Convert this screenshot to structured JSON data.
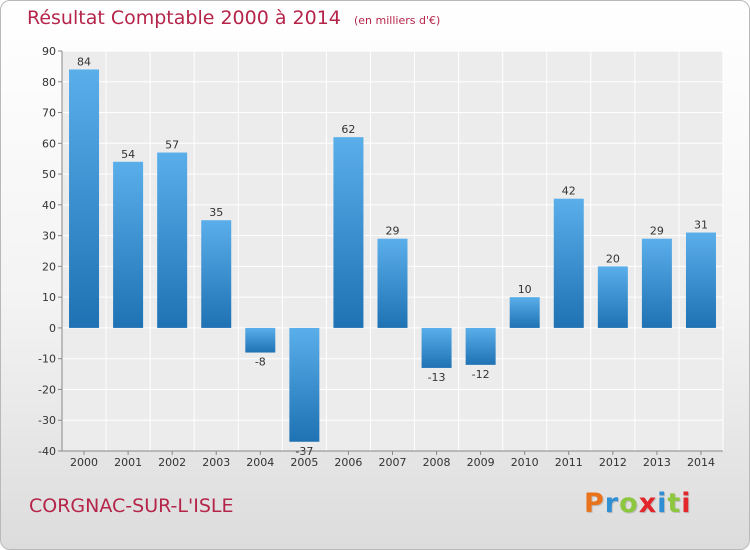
{
  "header": {
    "title": "Résultat Comptable 2000 à 2014",
    "unit": "(en milliers d'€)"
  },
  "footer": {
    "commune": "CORGNAC-SUR-L'ISLE",
    "brand": "Proxiti",
    "brand_colors": [
      "#e8731c",
      "#2e8fd4",
      "#8dc63f",
      "#e3262b",
      "#2e8fd4",
      "#8dc63f",
      "#e3262b"
    ]
  },
  "chart_data": {
    "type": "bar",
    "title": "Résultat Comptable 2000 à 2014",
    "subtitle": "(en milliers d'€)",
    "categories": [
      "2000",
      "2001",
      "2002",
      "2003",
      "2004",
      "2005",
      "2006",
      "2007",
      "2008",
      "2009",
      "2010",
      "2011",
      "2012",
      "2013",
      "2014"
    ],
    "values": [
      84,
      54,
      57,
      35,
      -8,
      -37,
      62,
      29,
      -13,
      -12,
      10,
      42,
      20,
      29,
      31
    ],
    "ylim": [
      -40,
      90
    ],
    "yticks": [
      -40,
      -30,
      -20,
      -10,
      0,
      10,
      20,
      30,
      40,
      50,
      60,
      70,
      80,
      90
    ],
    "grid": true,
    "bar_color_top": "#5aaeea",
    "bar_color_bottom": "#1f72b3",
    "title_color": "#b5254a"
  }
}
